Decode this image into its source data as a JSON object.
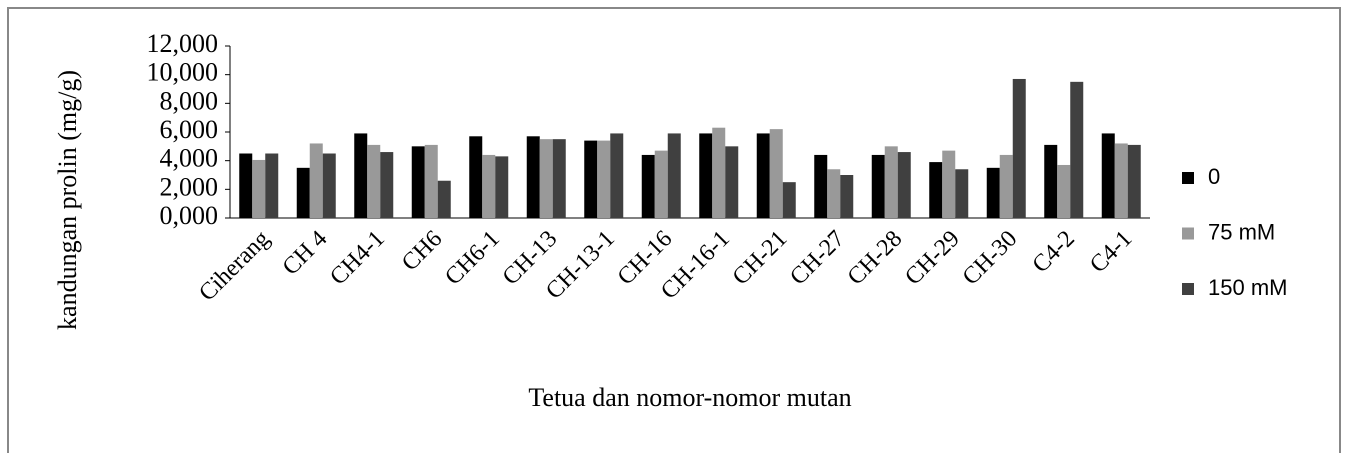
{
  "chart_data": {
    "type": "bar",
    "y_label": "kandungan prolin (mg/g)",
    "x_label": "Tetua dan nomor-nomor mutan",
    "categories": [
      "Ciherang",
      "CH 4",
      "CH4-1",
      "CH6",
      "CH6-1",
      "CH-13",
      "CH-13-1",
      "CH-16",
      "CH-16-1",
      "CH-21",
      "CH-27",
      "CH-28",
      "CH-29",
      "CH-30",
      "C4-2",
      "C4-1"
    ],
    "series": [
      {
        "name": "0",
        "color": "#000000",
        "values": [
          4.5,
          3.5,
          5.9,
          5.0,
          5.7,
          5.7,
          5.4,
          4.4,
          5.9,
          5.9,
          4.4,
          4.4,
          3.9,
          3.5,
          5.1,
          5.9
        ]
      },
      {
        "name": "75 mM",
        "color": "#999999",
        "values": [
          4.05,
          5.2,
          5.1,
          5.1,
          4.4,
          5.5,
          5.4,
          4.7,
          6.3,
          6.2,
          3.4,
          5.0,
          4.7,
          4.4,
          3.7,
          5.2
        ]
      },
      {
        "name": "150 mM",
        "color": "#404040",
        "values": [
          4.5,
          4.5,
          4.6,
          2.6,
          4.3,
          5.5,
          5.9,
          5.9,
          5.0,
          2.5,
          3.0,
          4.6,
          3.4,
          9.7,
          9.5,
          5.1
        ]
      }
    ],
    "ylim": [
      0,
      12
    ],
    "yticks": [
      {
        "value": 0,
        "label": "0,000"
      },
      {
        "value": 2,
        "label": "2,000"
      },
      {
        "value": 4,
        "label": "4,000"
      },
      {
        "value": 6,
        "label": "6,000"
      },
      {
        "value": 8,
        "label": "8,000"
      },
      {
        "value": 10,
        "label": "10,000"
      },
      {
        "value": 12,
        "label": "12,000"
      }
    ],
    "grid": false,
    "legend": "right"
  }
}
